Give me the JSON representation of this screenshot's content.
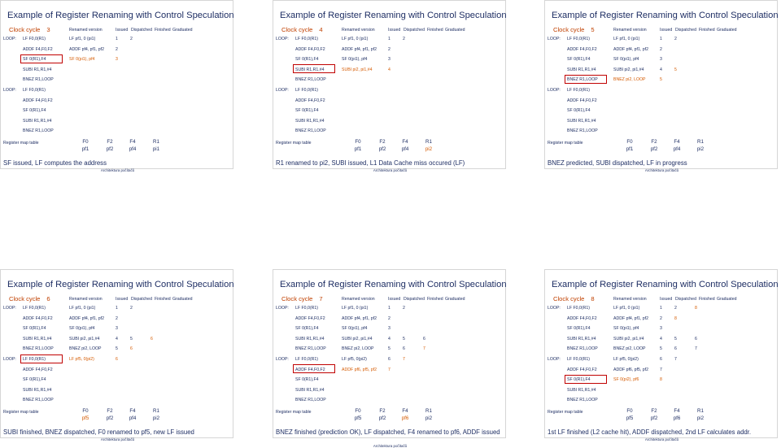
{
  "headers": {
    "renamed": "Renamed version",
    "issued": "Issued",
    "dispatched": "Dispatched",
    "finished": "Finished",
    "graduated": "Graduated"
  },
  "reg_label": "Register map table",
  "reg_names": [
    "F0",
    "F2",
    "F4",
    "R1"
  ],
  "footer": "Architektura počítačů",
  "accent": "#c04000",
  "slides": [
    {
      "title": "Example of Register Renaming with Control Speculation",
      "cc_label": "Clock cycle",
      "cc": "3",
      "rows": [
        {
          "lbl": "LOOP:",
          "ins": "LF   F0,0(R1)",
          "ren": "LF pf1, 0 (pi1)",
          "c1": "1",
          "c2": "2",
          "c3": "",
          "c4": ""
        },
        {
          "lbl": "",
          "ins": "ADDF F4,F0,F2",
          "ren": "ADDF pf4, pf1, pf2",
          "c1": "2",
          "c2": "",
          "c3": "",
          "c4": ""
        },
        {
          "lbl": "",
          "ins": "SF   0(R1),F4",
          "ren": "SF 0(pi1), pf4",
          "c1": "3",
          "c2": "",
          "c3": "",
          "c4": "",
          "hl": "ren,c1",
          "box": true
        },
        {
          "lbl": "",
          "ins": "SUBI  R1,R1,#4",
          "ren": "",
          "c1": "",
          "c2": "",
          "c3": "",
          "c4": ""
        },
        {
          "lbl": "",
          "ins": "BNEZ  R1,LOOP",
          "ren": "",
          "c1": "",
          "c2": "",
          "c3": "",
          "c4": ""
        },
        {
          "lbl": "LOOP:",
          "ins": "LF   F0,0(R1)",
          "ren": "",
          "c1": "",
          "c2": "",
          "c3": "",
          "c4": ""
        },
        {
          "lbl": "",
          "ins": "ADDF F4,F0,F2",
          "ren": "",
          "c1": "",
          "c2": "",
          "c3": "",
          "c4": ""
        },
        {
          "lbl": "",
          "ins": "SF   0(R1),F4",
          "ren": "",
          "c1": "",
          "c2": "",
          "c3": "",
          "c4": ""
        },
        {
          "lbl": "",
          "ins": "SUBI  R1,R1,#4",
          "ren": "",
          "c1": "",
          "c2": "",
          "c3": "",
          "c4": ""
        },
        {
          "lbl": "",
          "ins": "BNEZ  R1,LOOP",
          "ren": "",
          "c1": "",
          "c2": "",
          "c3": "",
          "c4": ""
        }
      ],
      "regs": [
        "pf1",
        "pf2",
        "pf4",
        "pi1"
      ],
      "reg_hl": [],
      "caption": "SF issued, LF computes the address"
    },
    {
      "title": "Example of Register Renaming with Control Speculation",
      "cc_label": "Clock cycle",
      "cc": "4",
      "rows": [
        {
          "lbl": "LOOP:",
          "ins": "LF   F0,0(R1)",
          "ren": "LF pf1, 0 (pi1)",
          "c1": "1",
          "c2": "2",
          "c3": "",
          "c4": ""
        },
        {
          "lbl": "",
          "ins": "ADDF F4,F0,F2",
          "ren": "ADDF pf4, pf1, pf2",
          "c1": "2",
          "c2": "",
          "c3": "",
          "c4": ""
        },
        {
          "lbl": "",
          "ins": "SF   0(R1),F4",
          "ren": "SF 0(pi1), pf4",
          "c1": "3",
          "c2": "",
          "c3": "",
          "c4": ""
        },
        {
          "lbl": "",
          "ins": "SUBI  R1,R1,#4",
          "ren": "SUBI pi2, pi1,#4",
          "c1": "4",
          "c2": "",
          "c3": "",
          "c4": "",
          "hl": "ren,c1",
          "box": true
        },
        {
          "lbl": "",
          "ins": "BNEZ  R1,LOOP",
          "ren": "",
          "c1": "",
          "c2": "",
          "c3": "",
          "c4": ""
        },
        {
          "lbl": "LOOP:",
          "ins": "LF   F0,0(R1)",
          "ren": "",
          "c1": "",
          "c2": "",
          "c3": "",
          "c4": ""
        },
        {
          "lbl": "",
          "ins": "ADDF F4,F0,F2",
          "ren": "",
          "c1": "",
          "c2": "",
          "c3": "",
          "c4": ""
        },
        {
          "lbl": "",
          "ins": "SF   0(R1),F4",
          "ren": "",
          "c1": "",
          "c2": "",
          "c3": "",
          "c4": ""
        },
        {
          "lbl": "",
          "ins": "SUBI  R1,R1,#4",
          "ren": "",
          "c1": "",
          "c2": "",
          "c3": "",
          "c4": ""
        },
        {
          "lbl": "",
          "ins": "BNEZ  R1,LOOP",
          "ren": "",
          "c1": "",
          "c2": "",
          "c3": "",
          "c4": ""
        }
      ],
      "regs": [
        "pf1",
        "pf2",
        "pf4",
        "pi2"
      ],
      "reg_hl": [
        3
      ],
      "caption": "R1 renamed to pi2, SUBI issued, L1 Data Cache miss occured (LF)"
    },
    {
      "title": "Example of Register Renaming with Control Speculation",
      "cc_label": "Clock cycle",
      "cc": "5",
      "rows": [
        {
          "lbl": "LOOP:",
          "ins": "LF   F0,0(R1)",
          "ren": "LF pf1, 0 (pi1)",
          "c1": "1",
          "c2": "2",
          "c3": "",
          "c4": ""
        },
        {
          "lbl": "",
          "ins": "ADDF F4,F0,F2",
          "ren": "ADDF pf4, pf1, pf2",
          "c1": "2",
          "c2": "",
          "c3": "",
          "c4": ""
        },
        {
          "lbl": "",
          "ins": "SF   0(R1),F4",
          "ren": "SF 0(pi1), pf4",
          "c1": "3",
          "c2": "",
          "c3": "",
          "c4": ""
        },
        {
          "lbl": "",
          "ins": "SUBI  R1,R1,#4",
          "ren": "SUBI pi2, pi1,#4",
          "c1": "4",
          "c2": "5",
          "c3": "",
          "c4": "",
          "hl": "c2"
        },
        {
          "lbl": "",
          "ins": "BNEZ  R1,LOOP",
          "ren": "BNEZ pi2, LOOP",
          "c1": "5",
          "c2": "",
          "c3": "",
          "c4": "",
          "hl": "ren,c1",
          "box": true
        },
        {
          "lbl": "LOOP:",
          "ins": "LF   F0,0(R1)",
          "ren": "",
          "c1": "",
          "c2": "",
          "c3": "",
          "c4": ""
        },
        {
          "lbl": "",
          "ins": "ADDF F4,F0,F2",
          "ren": "",
          "c1": "",
          "c2": "",
          "c3": "",
          "c4": ""
        },
        {
          "lbl": "",
          "ins": "SF   0(R1),F4",
          "ren": "",
          "c1": "",
          "c2": "",
          "c3": "",
          "c4": ""
        },
        {
          "lbl": "",
          "ins": "SUBI  R1,R1,#4",
          "ren": "",
          "c1": "",
          "c2": "",
          "c3": "",
          "c4": ""
        },
        {
          "lbl": "",
          "ins": "BNEZ  R1,LOOP",
          "ren": "",
          "c1": "",
          "c2": "",
          "c3": "",
          "c4": ""
        }
      ],
      "regs": [
        "pf1",
        "pf2",
        "pf4",
        "pi2"
      ],
      "reg_hl": [],
      "caption": "BNEZ predicted, SUBI dispatched, LF in progress"
    },
    {
      "title": "Example of Register Renaming with Control Speculation",
      "cc_label": "Clock cycle",
      "cc": "6",
      "rows": [
        {
          "lbl": "LOOP:",
          "ins": "LF   F0,0(R1)",
          "ren": "LF pf1, 0 (pi1)",
          "c1": "1",
          "c2": "2",
          "c3": "",
          "c4": ""
        },
        {
          "lbl": "",
          "ins": "ADDF F4,F0,F2",
          "ren": "ADDF pf4, pf1, pf2",
          "c1": "2",
          "c2": "",
          "c3": "",
          "c4": ""
        },
        {
          "lbl": "",
          "ins": "SF   0(R1),F4",
          "ren": "SF 0(pi1), pf4",
          "c1": "3",
          "c2": "",
          "c3": "",
          "c4": ""
        },
        {
          "lbl": "",
          "ins": "SUBI  R1,R1,#4",
          "ren": "SUBI pi2, pi1,#4",
          "c1": "4",
          "c2": "5",
          "c3": "6",
          "c4": "",
          "hl": "c3"
        },
        {
          "lbl": "",
          "ins": "BNEZ  R1,LOOP",
          "ren": "BNEZ pi2, LOOP",
          "c1": "5",
          "c2": "6",
          "c3": "",
          "c4": "",
          "hl": "c2"
        },
        {
          "lbl": "LOOP:",
          "ins": "LF   F0,0(R1)",
          "ren": "LF pf5, 0(pi2)",
          "c1": "6",
          "c2": "",
          "c3": "",
          "c4": "",
          "hl": "ren,c1",
          "box": true
        },
        {
          "lbl": "",
          "ins": "ADDF F4,F0,F2",
          "ren": "",
          "c1": "",
          "c2": "",
          "c3": "",
          "c4": ""
        },
        {
          "lbl": "",
          "ins": "SF   0(R1),F4",
          "ren": "",
          "c1": "",
          "c2": "",
          "c3": "",
          "c4": ""
        },
        {
          "lbl": "",
          "ins": "SUBI  R1,R1,#4",
          "ren": "",
          "c1": "",
          "c2": "",
          "c3": "",
          "c4": ""
        },
        {
          "lbl": "",
          "ins": "BNEZ  R1,LOOP",
          "ren": "",
          "c1": "",
          "c2": "",
          "c3": "",
          "c4": ""
        }
      ],
      "regs": [
        "pf5",
        "pf2",
        "pf4",
        "pi2"
      ],
      "reg_hl": [
        0
      ],
      "caption": "SUBI finished, BNEZ dispatched, F0 renamed to pf5, new LF issued"
    },
    {
      "title": "Example of Register Renaming with Control Speculation",
      "cc_label": "Clock cycle",
      "cc": "7",
      "rows": [
        {
          "lbl": "LOOP:",
          "ins": "LF   F0,0(R1)",
          "ren": "LF pf1, 0 (pi1)",
          "c1": "1",
          "c2": "2",
          "c3": "",
          "c4": ""
        },
        {
          "lbl": "",
          "ins": "ADDF F4,F0,F2",
          "ren": "ADDF pf4, pf1, pf2",
          "c1": "2",
          "c2": "",
          "c3": "",
          "c4": ""
        },
        {
          "lbl": "",
          "ins": "SF   0(R1),F4",
          "ren": "SF 0(pi1), pf4",
          "c1": "3",
          "c2": "",
          "c3": "",
          "c4": ""
        },
        {
          "lbl": "",
          "ins": "SUBI  R1,R1,#4",
          "ren": "SUBI pi2, pi1,#4",
          "c1": "4",
          "c2": "5",
          "c3": "6",
          "c4": ""
        },
        {
          "lbl": "",
          "ins": "BNEZ  R1,LOOP",
          "ren": "BNEZ pi2, LOOP",
          "c1": "5",
          "c2": "6",
          "c3": "7",
          "c4": "",
          "hl": "c3"
        },
        {
          "lbl": "LOOP:",
          "ins": "LF   F0,0(R1)",
          "ren": "LF pf5, 0(pi2)",
          "c1": "6",
          "c2": "7",
          "c3": "",
          "c4": "",
          "hl": "c2"
        },
        {
          "lbl": "",
          "ins": "ADDF F4,F0,F2",
          "ren": "ADDF pf6, pf5, pf2",
          "c1": "7",
          "c2": "",
          "c3": "",
          "c4": "",
          "hl": "ren,c1",
          "box": true
        },
        {
          "lbl": "",
          "ins": "SF   0(R1),F4",
          "ren": "",
          "c1": "",
          "c2": "",
          "c3": "",
          "c4": ""
        },
        {
          "lbl": "",
          "ins": "SUBI  R1,R1,#4",
          "ren": "",
          "c1": "",
          "c2": "",
          "c3": "",
          "c4": ""
        },
        {
          "lbl": "",
          "ins": "BNEZ  R1,LOOP",
          "ren": "",
          "c1": "",
          "c2": "",
          "c3": "",
          "c4": ""
        }
      ],
      "regs": [
        "pf5",
        "pf2",
        "pf6",
        "pi2"
      ],
      "reg_hl": [
        2
      ],
      "caption": "BNEZ finished (prediction OK), LF dispatched, F4 renamed to pf6, ADDF issued"
    },
    {
      "title": "Example of Register Renaming with Control Speculation",
      "cc_label": "Clock cycle",
      "cc": "8",
      "rows": [
        {
          "lbl": "LOOP:",
          "ins": "LF   F0,0(R1)",
          "ren": "LF pf1, 0 (pi1)",
          "c1": "1",
          "c2": "2",
          "c3": "8",
          "c4": "",
          "hl": "c3"
        },
        {
          "lbl": "",
          "ins": "ADDF F4,F0,F2",
          "ren": "ADDF pf4, pf1, pf2",
          "c1": "2",
          "c2": "8",
          "c3": "",
          "c4": "",
          "hl": "c2"
        },
        {
          "lbl": "",
          "ins": "SF   0(R1),F4",
          "ren": "SF 0(pi1), pf4",
          "c1": "3",
          "c2": "",
          "c3": "",
          "c4": ""
        },
        {
          "lbl": "",
          "ins": "SUBI  R1,R1,#4",
          "ren": "SUBI pi2, pi1,#4",
          "c1": "4",
          "c2": "5",
          "c3": "6",
          "c4": ""
        },
        {
          "lbl": "",
          "ins": "BNEZ  R1,LOOP",
          "ren": "BNEZ pi2, LOOP",
          "c1": "5",
          "c2": "6",
          "c3": "7",
          "c4": ""
        },
        {
          "lbl": "LOOP:",
          "ins": "LF   F0,0(R1)",
          "ren": "LF pf5, 0(pi2)",
          "c1": "6",
          "c2": "7",
          "c3": "",
          "c4": ""
        },
        {
          "lbl": "",
          "ins": "ADDF F4,F0,F2",
          "ren": "ADDF pf6, pf5, pf2",
          "c1": "7",
          "c2": "",
          "c3": "",
          "c4": ""
        },
        {
          "lbl": "",
          "ins": "SF   0(R1),F4",
          "ren": "SF 0(pi2), pf6",
          "c1": "8",
          "c2": "",
          "c3": "",
          "c4": "",
          "hl": "ren,c1",
          "box": true
        },
        {
          "lbl": "",
          "ins": "SUBI  R1,R1,#4",
          "ren": "",
          "c1": "",
          "c2": "",
          "c3": "",
          "c4": ""
        },
        {
          "lbl": "",
          "ins": "BNEZ  R1,LOOP",
          "ren": "",
          "c1": "",
          "c2": "",
          "c3": "",
          "c4": ""
        }
      ],
      "regs": [
        "pf5",
        "pf2",
        "pf6",
        "pi2"
      ],
      "reg_hl": [],
      "caption": "1st LF finished (L2 cache hit), ADDF dispatched, 2nd LF calculates addr."
    }
  ]
}
